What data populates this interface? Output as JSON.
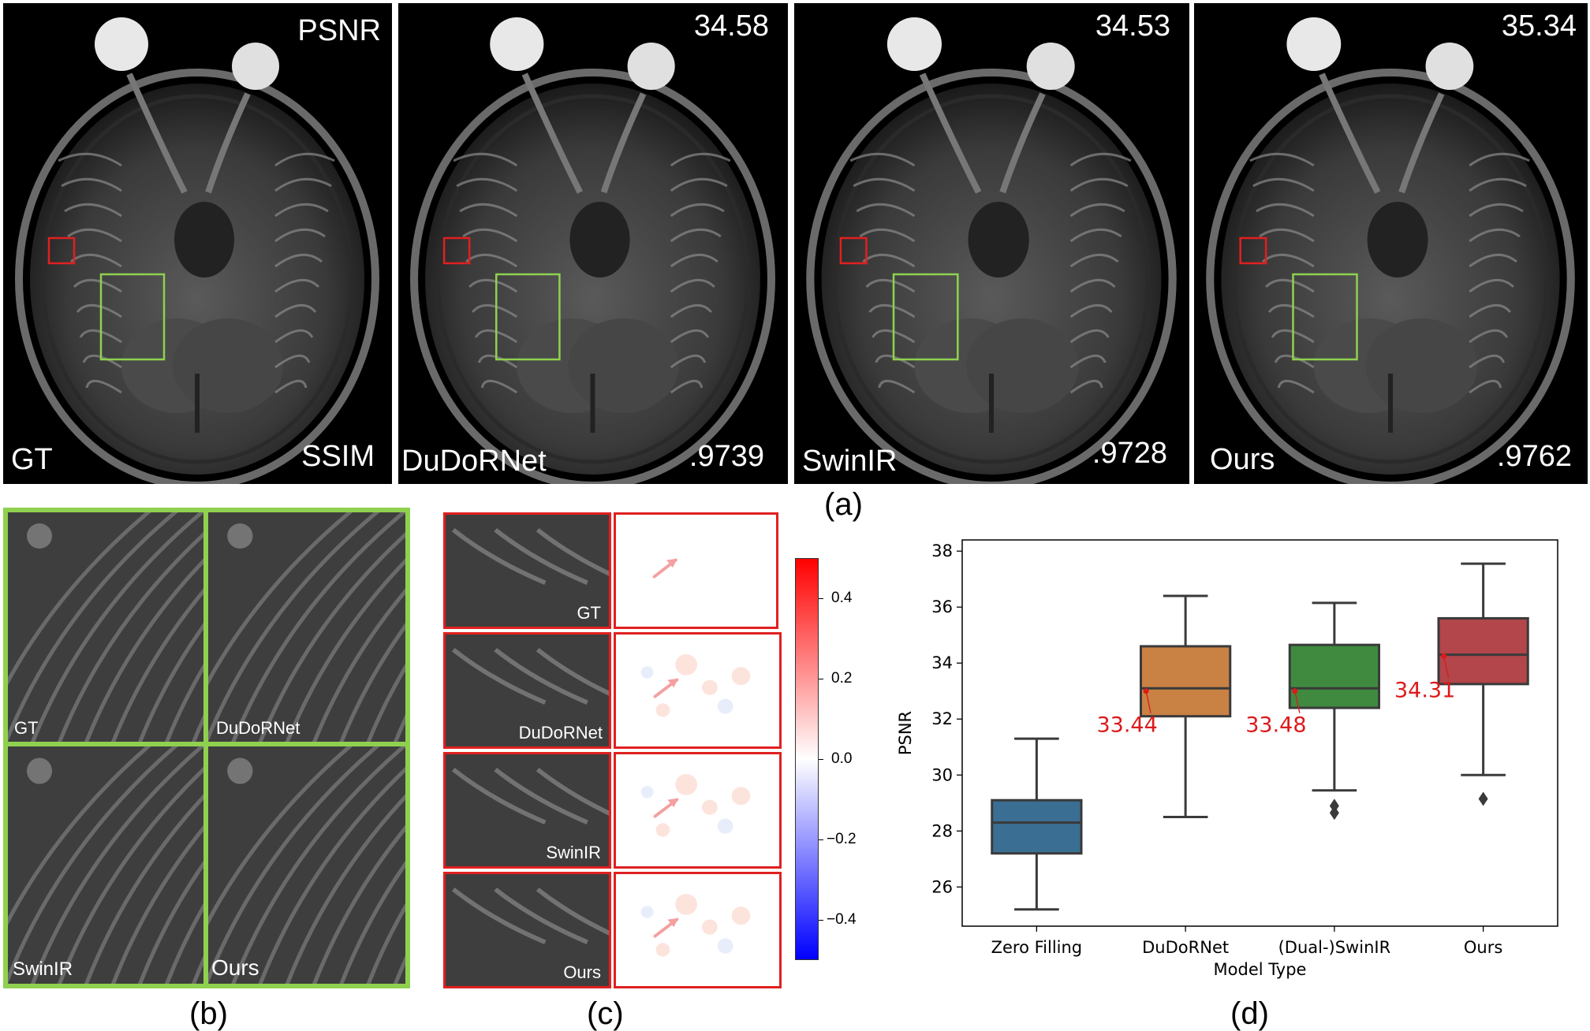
{
  "panel_a": {
    "caption": "(a)",
    "images": [
      {
        "method": "GT",
        "psnr": "PSNR",
        "ssim": "SSIM"
      },
      {
        "method": "DuDoRNet",
        "psnr": "34.58",
        "ssim": ".9739"
      },
      {
        "method": "SwinIR",
        "psnr": "34.53",
        "ssim": ".9728"
      },
      {
        "method": "Ours",
        "psnr": "35.34",
        "ssim": ".9762"
      }
    ],
    "colors": {
      "red_box": "#e02020",
      "green_box": "#8fd14f"
    }
  },
  "panel_b": {
    "caption": "(b)",
    "tiles": [
      "GT",
      "DuDoRNet",
      "SwinIR",
      "Ours"
    ],
    "border_color": "#8fd14f"
  },
  "panel_c": {
    "caption": "(c)",
    "tiles": [
      "GT",
      "DuDoRNet",
      "SwinIR",
      "Ours"
    ],
    "border_color": "#e02020",
    "colorbar": {
      "ticks": [
        "0.4",
        "0.2",
        "0.0",
        "−0.2",
        "−0.4"
      ],
      "range": [
        -0.5,
        0.5
      ],
      "colors": [
        "#0000ff",
        "#ffffff",
        "#ff0000"
      ]
    }
  },
  "panel_d": {
    "caption": "(d)",
    "chart_data": {
      "type": "box",
      "xlabel": "Model Type",
      "ylabel": "PSNR",
      "ylim": [
        24.6,
        38.4
      ],
      "yticks": [
        26,
        28,
        30,
        32,
        34,
        36,
        38
      ],
      "grid": false,
      "categories": [
        "Zero Filling",
        "DuDoRNet",
        "(Dual-)SwinIR",
        "Ours"
      ],
      "boxes": [
        {
          "name": "Zero Filling",
          "whisker_low": 25.2,
          "q1": 27.2,
          "median": 28.3,
          "q3": 29.1,
          "whisker_high": 31.3,
          "outliers": [],
          "color": "#3a6e93"
        },
        {
          "name": "DuDoRNet",
          "whisker_low": 28.5,
          "q1": 32.1,
          "median": 33.1,
          "q3": 34.6,
          "whisker_high": 36.4,
          "outliers": [],
          "color": "#c98144",
          "annotation": "33.44"
        },
        {
          "name": "(Dual-)SwinIR",
          "whisker_low": 29.45,
          "q1": 32.4,
          "median": 33.1,
          "q3": 34.65,
          "whisker_high": 36.15,
          "outliers": [
            28.9,
            28.65
          ],
          "color": "#3f8a3f",
          "annotation": "33.48"
        },
        {
          "name": "Ours",
          "whisker_low": 30.0,
          "q1": 33.25,
          "median": 34.3,
          "q3": 35.6,
          "whisker_high": 37.55,
          "outliers": [
            29.15
          ],
          "color": "#b2464a",
          "annotation": "34.31"
        }
      ],
      "annotation_color": "#dd1a1a",
      "annotation_mean_points": [
        33.0,
        33.0,
        34.25
      ]
    }
  }
}
